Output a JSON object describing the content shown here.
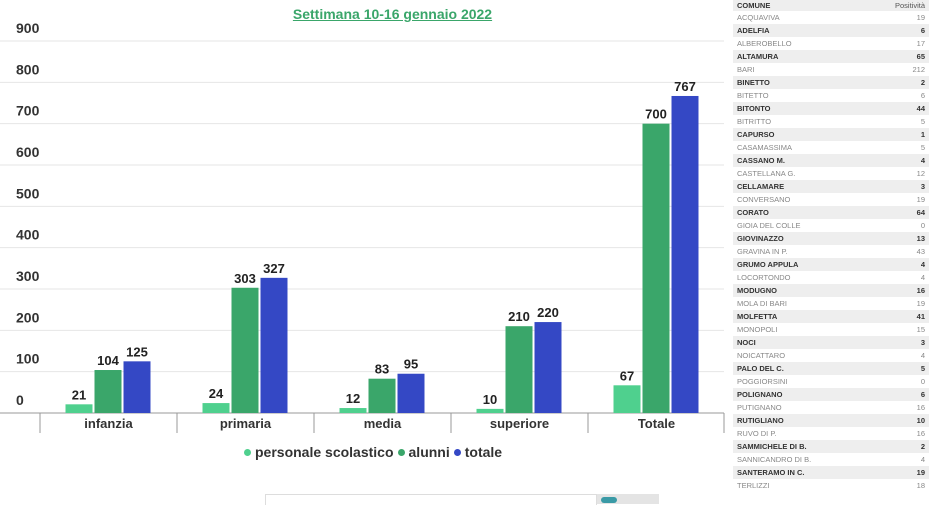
{
  "chart_data": {
    "type": "bar",
    "title": "Settimana 10-16 gennaio 2022",
    "categories": [
      "infanzia",
      "primaria",
      "media",
      "superiore",
      "Totale"
    ],
    "series": [
      {
        "name": "personale scolastico",
        "color": "#4fd08e",
        "values": [
          21,
          24,
          12,
          10,
          67
        ]
      },
      {
        "name": "alunni",
        "color": "#3aa66a",
        "values": [
          104,
          303,
          83,
          210,
          700
        ]
      },
      {
        "name": "totale",
        "color": "#3448c5",
        "values": [
          125,
          327,
          95,
          220,
          767
        ]
      }
    ],
    "yticks": [
      0,
      100,
      200,
      300,
      400,
      500,
      600,
      700,
      800,
      900
    ],
    "ylim": [
      0,
      900
    ],
    "grid": true,
    "legend": "bottom",
    "data_labels": true
  },
  "table": {
    "headers": [
      "COMUNE",
      "Positività"
    ],
    "rows": [
      [
        "ACQUAVIVA",
        "19"
      ],
      [
        "ADELFIA",
        "6"
      ],
      [
        "ALBEROBELLO",
        "17"
      ],
      [
        "ALTAMURA",
        "65"
      ],
      [
        "BARI",
        "212"
      ],
      [
        "BINETTO",
        "2"
      ],
      [
        "BITETTO",
        "6"
      ],
      [
        "BITONTO",
        "44"
      ],
      [
        "BITRITTO",
        "5"
      ],
      [
        " CAPURSO",
        "1"
      ],
      [
        "CASAMASSIMA",
        "5"
      ],
      [
        "CASSANO M.",
        "4"
      ],
      [
        "CASTELLANA  G.",
        "12"
      ],
      [
        "CELLAMARE",
        "3"
      ],
      [
        "CONVERSANO",
        "19"
      ],
      [
        "CORATO",
        "64"
      ],
      [
        "GIOIA DEL COLLE",
        "0"
      ],
      [
        "GIOVINAZZO",
        "13"
      ],
      [
        "GRAVINA IN P.",
        "43"
      ],
      [
        "GRUMO APPULA",
        "4"
      ],
      [
        "LOCORTONDO",
        "4"
      ],
      [
        "MODUGNO",
        "16"
      ],
      [
        "MOLA DI BARI",
        "19"
      ],
      [
        "MOLFETTA",
        "41"
      ],
      [
        "MONOPOLI",
        "15"
      ],
      [
        "NOCI",
        "3"
      ],
      [
        "NOICATTARO",
        "4"
      ],
      [
        "PALO DEL C.",
        "5"
      ],
      [
        "POGGIORSINI",
        "0"
      ],
      [
        "POLIGNANO",
        "6"
      ],
      [
        "PUTIGNANO",
        "16"
      ],
      [
        "RUTIGLIANO",
        "10"
      ],
      [
        "RUVO DI P.",
        "16"
      ],
      [
        "SAMMICHELE DI B.",
        "2"
      ],
      [
        "SANNICANDRO DI B.",
        "4"
      ],
      [
        "SANTERAMO IN C.",
        "19"
      ],
      [
        "TERLIZZI",
        "18"
      ]
    ]
  }
}
